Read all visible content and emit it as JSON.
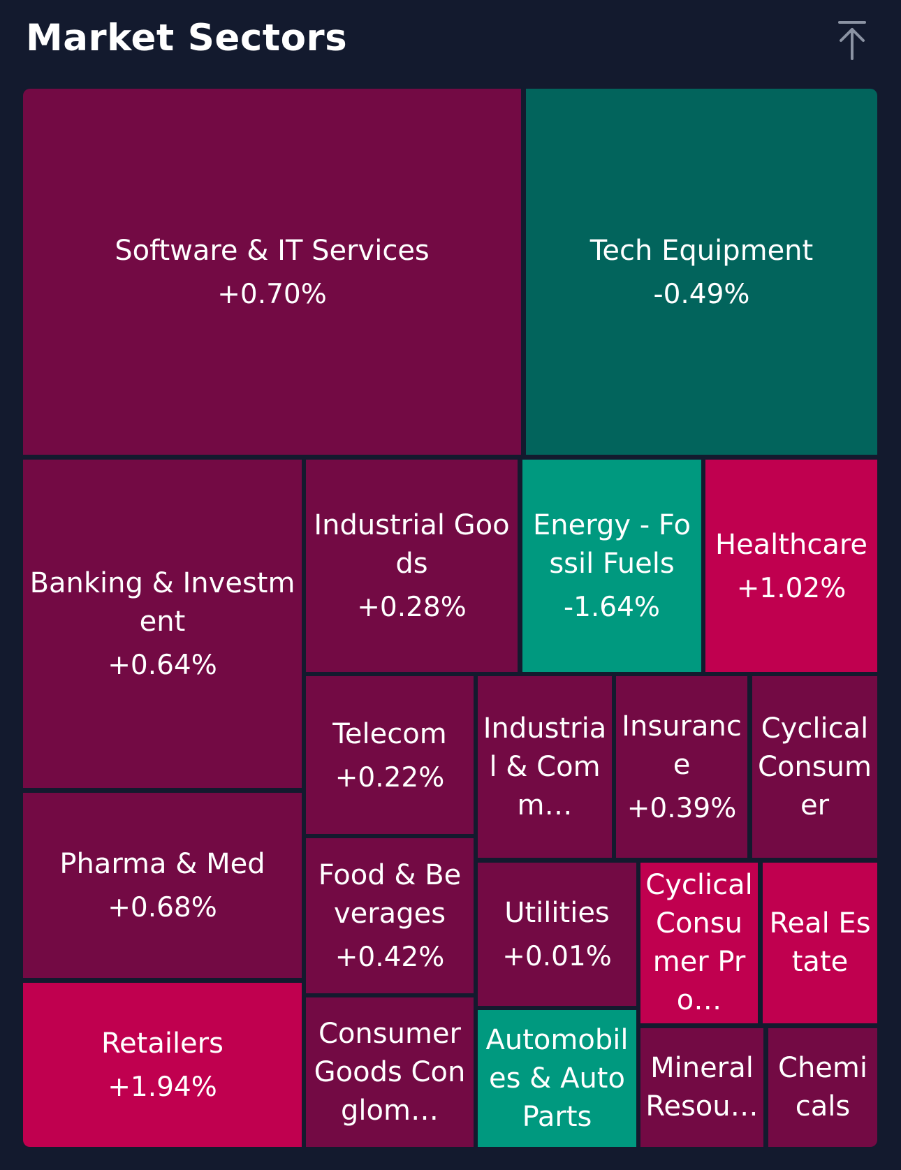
{
  "header": {
    "title": "Market Sectors",
    "scroll_top_icon": "arrow-up-to-line-icon"
  },
  "colors": {
    "background": "#131a2e",
    "gain_dark": "#730a44",
    "gain_bright": "#c0004f",
    "loss_dark": "#02645c",
    "loss_bright": "#00997f"
  },
  "sectors": [
    {
      "name": "Software & IT Services",
      "change": "+0.70%"
    },
    {
      "name": "Tech Equipment",
      "change": "-0.49%"
    },
    {
      "name": "Banking & Investment",
      "change": "+0.64%"
    },
    {
      "name": "Industrial Goods",
      "change": "+0.28%"
    },
    {
      "name": "Energy - Fossil Fuels",
      "change": "-1.64%"
    },
    {
      "name": "Healthcare",
      "change": "+1.02%"
    },
    {
      "name": "Telecom",
      "change": "+0.22%"
    },
    {
      "name": "Industrial & Comm…",
      "change": ""
    },
    {
      "name": "Insurance",
      "change": "+0.39%"
    },
    {
      "name": "Cyclical Consumer",
      "change": ""
    },
    {
      "name": "Pharma & Med",
      "change": "+0.68%"
    },
    {
      "name": "Food & Beverages",
      "change": "+0.42%"
    },
    {
      "name": "Utilities",
      "change": "+0.01%"
    },
    {
      "name": "Cyclical Consumer Pro…",
      "change": ""
    },
    {
      "name": "Real Estate",
      "change": ""
    },
    {
      "name": "Retailers",
      "change": "+1.94%"
    },
    {
      "name": "Consumer Goods Conglom…",
      "change": ""
    },
    {
      "name": "Automobiles & Auto Parts",
      "change": ""
    },
    {
      "name": "Mineral Resou…",
      "change": ""
    },
    {
      "name": "Chemicals",
      "change": ""
    }
  ]
}
